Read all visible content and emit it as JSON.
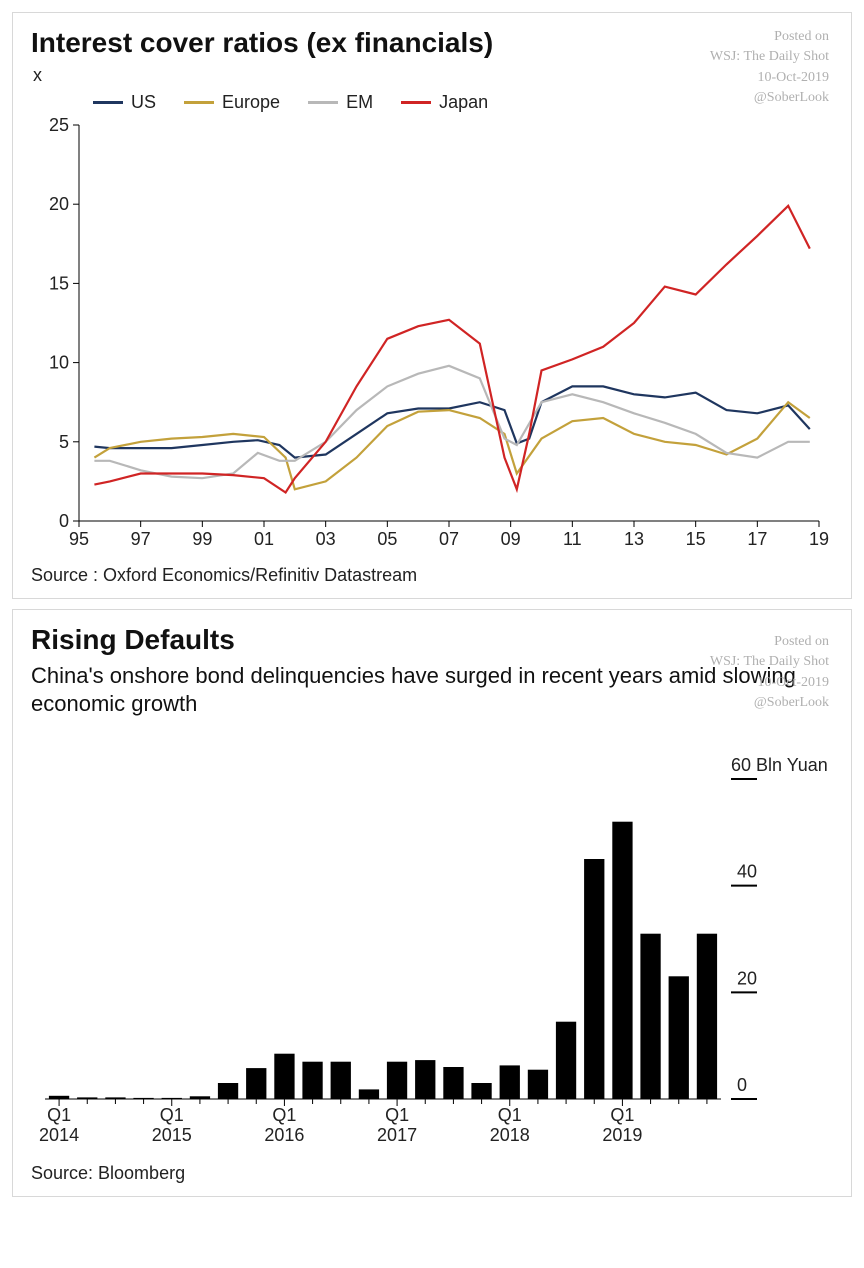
{
  "watermark": {
    "line1": "Posted on",
    "line2": "WSJ: The Daily Shot",
    "line3": "10-Oct-2019",
    "handle": "@SoberLook",
    "color": "#b0b0b0",
    "fontsize": 14
  },
  "chart1": {
    "type": "line",
    "title": "Interest cover ratios (ex financials)",
    "title_fontsize": 28,
    "y_unit_label": "x",
    "source": "Source : Oxford Economics/Refinitiv Datastream",
    "background_color": "#ffffff",
    "border_color": "#d8d8d8",
    "axis_color": "#000000",
    "label_fontsize": 18,
    "xlim": [
      95,
      119
    ],
    "ylim": [
      0,
      25
    ],
    "ytick_step": 5,
    "xtick_step": 2,
    "xticks": [
      95,
      97,
      99,
      101,
      103,
      105,
      107,
      109,
      111,
      113,
      115,
      117,
      119
    ],
    "xtick_labels": [
      "95",
      "97",
      "99",
      "01",
      "03",
      "05",
      "07",
      "09",
      "11",
      "13",
      "15",
      "17",
      "19"
    ],
    "legend": [
      {
        "label": "US",
        "color": "#1f365f"
      },
      {
        "label": "Europe",
        "color": "#c3a13b"
      },
      {
        "label": "EM",
        "color": "#b8b8b8"
      },
      {
        "label": "Japan",
        "color": "#d02424"
      }
    ],
    "series": {
      "US": {
        "color": "#1f365f",
        "x": [
          95.5,
          96,
          97,
          98,
          99,
          100,
          100.8,
          101.5,
          102,
          103,
          104,
          105,
          106,
          107,
          108,
          108.8,
          109.2,
          109.6,
          110,
          111,
          112,
          113,
          114,
          115,
          116,
          117,
          118,
          118.7
        ],
        "y": [
          4.7,
          4.6,
          4.6,
          4.6,
          4.8,
          5.0,
          5.1,
          4.8,
          4.0,
          4.2,
          5.5,
          6.8,
          7.1,
          7.1,
          7.5,
          7.0,
          4.9,
          5.2,
          7.5,
          8.5,
          8.5,
          8.0,
          7.8,
          8.1,
          7.0,
          6.8,
          7.3,
          5.8
        ]
      },
      "Europe": {
        "color": "#c3a13b",
        "x": [
          95.5,
          96,
          97,
          98,
          99,
          100,
          101,
          101.7,
          102,
          103,
          104,
          105,
          106,
          107,
          108,
          108.8,
          109.2,
          110,
          111,
          112,
          113,
          114,
          115,
          116,
          117,
          118,
          118.7
        ],
        "y": [
          4.0,
          4.6,
          5.0,
          5.2,
          5.3,
          5.5,
          5.3,
          4.0,
          2.0,
          2.5,
          4.0,
          6.0,
          6.9,
          7.0,
          6.5,
          5.5,
          3.0,
          5.2,
          6.3,
          6.5,
          5.5,
          5.0,
          4.8,
          4.2,
          5.2,
          7.5,
          6.5
        ]
      },
      "EM": {
        "color": "#b8b8b8",
        "x": [
          95.5,
          96,
          97,
          98,
          99,
          100,
          100.8,
          101.5,
          102,
          103,
          104,
          105,
          106,
          107,
          108,
          108.8,
          109.2,
          110,
          111,
          112,
          113,
          114,
          115,
          116,
          117,
          118,
          118.7
        ],
        "y": [
          3.8,
          3.8,
          3.2,
          2.8,
          2.7,
          3.0,
          4.3,
          3.8,
          3.8,
          5.0,
          7.0,
          8.5,
          9.3,
          9.8,
          9.0,
          5.2,
          4.8,
          7.5,
          8.0,
          7.5,
          6.8,
          6.2,
          5.5,
          4.3,
          4.0,
          5.0,
          5.0
        ]
      },
      "Japan": {
        "color": "#d02424",
        "x": [
          95.5,
          96,
          97,
          98,
          99,
          100,
          101,
          101.7,
          102,
          103,
          104,
          105,
          106,
          107,
          108,
          108.8,
          109.2,
          109.6,
          110,
          111,
          112,
          113,
          114,
          115,
          116,
          117,
          118,
          118.7
        ],
        "y": [
          2.3,
          2.5,
          3.0,
          3.0,
          3.0,
          2.9,
          2.7,
          1.8,
          2.7,
          5.0,
          8.5,
          11.5,
          12.3,
          12.7,
          11.2,
          4.0,
          2.0,
          5.5,
          9.5,
          10.2,
          11.0,
          12.5,
          14.8,
          14.3,
          16.2,
          18.0,
          19.9,
          17.2
        ]
      }
    }
  },
  "chart2": {
    "type": "bar",
    "title": "Rising Defaults",
    "subtitle": "China's onshore bond delinquencies have surged in recent years amid slowing economic growth",
    "title_fontsize": 28,
    "subtitle_fontsize": 22,
    "source": "Source: Bloomberg",
    "background_color": "#ffffff",
    "border_color": "#d8d8d8",
    "bar_color": "#000000",
    "axis_color": "#000000",
    "label_fontsize": 18,
    "ylim": [
      0,
      60
    ],
    "ytick_step": 20,
    "top_y_label": "60 Bln Yuan",
    "yticks": [
      0,
      20,
      40
    ],
    "x_categories": [
      "2014Q1",
      "2014Q2",
      "2014Q3",
      "2014Q4",
      "2015Q1",
      "2015Q2",
      "2015Q3",
      "2015Q4",
      "2016Q1",
      "2016Q2",
      "2016Q3",
      "2016Q4",
      "2017Q1",
      "2017Q2",
      "2017Q3",
      "2017Q4",
      "2018Q1",
      "2018Q2",
      "2018Q3",
      "2018Q4",
      "2019Q1",
      "2019Q2",
      "2019Q3"
    ],
    "x_major_labels": {
      "0": "Q1\n2014",
      "4": "Q1\n2015",
      "8": "Q1\n2016",
      "12": "Q1\n2017",
      "16": "Q1\n2018",
      "20": "Q1\n2019"
    },
    "values": [
      0.6,
      0.3,
      0.3,
      0.2,
      0.2,
      0.5,
      3.0,
      5.8,
      8.5,
      7.0,
      7.0,
      1.8,
      7.0,
      7.3,
      6.0,
      3.0,
      6.3,
      5.5,
      14.5,
      45.0,
      52.0,
      31.0,
      23.0
    ],
    "extra_last_bar": 31.0,
    "bar_width": 0.72
  }
}
